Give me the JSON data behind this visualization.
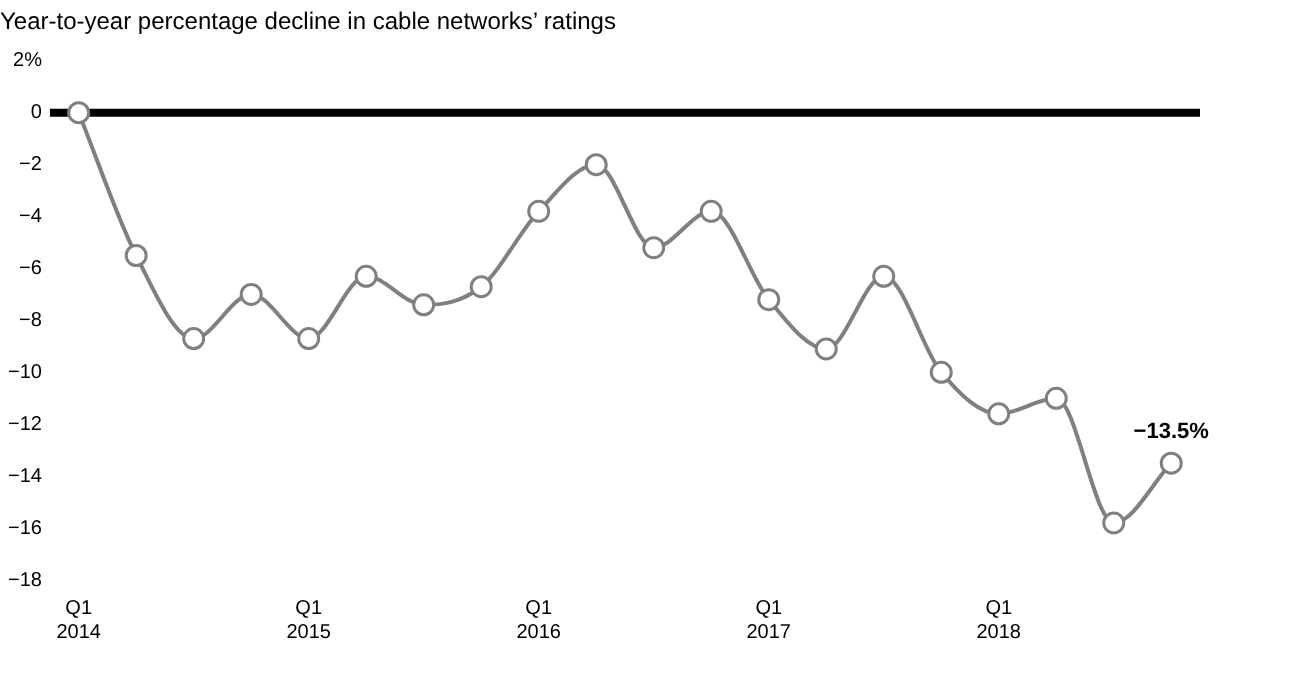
{
  "chart_data": {
    "type": "line",
    "title": "Year-to-year percentage decline in cable networks’ ratings",
    "categories": [
      "Q1\n2014",
      null,
      null,
      null,
      "Q1\n2015",
      null,
      null,
      null,
      "Q1\n2016",
      null,
      null,
      null,
      "Q1\n2017",
      null,
      null,
      null,
      "Q1\n2018",
      null,
      null,
      null
    ],
    "series": [
      {
        "color": "#808080",
        "values": [
          0,
          -5.5,
          -8.7,
          -7.0,
          -8.7,
          -6.3,
          -7.4,
          -6.7,
          -3.8,
          -2.0,
          -5.2,
          -3.8,
          -7.2,
          -9.1,
          -6.3,
          -10.0,
          -11.6,
          -11.0,
          -15.8,
          -13.5
        ],
        "value_labels": [
          null,
          null,
          null,
          null,
          null,
          null,
          null,
          null,
          null,
          null,
          null,
          null,
          null,
          null,
          null,
          null,
          null,
          null,
          null,
          "−13.5%"
        ]
      }
    ],
    "ylim": [
      -18,
      2
    ],
    "yticks": [
      {
        "value": 2,
        "label": "2%"
      },
      0,
      {
        "value": -2,
        "label": "−2"
      },
      {
        "value": -4,
        "label": "−4"
      },
      {
        "value": -6,
        "label": "−6"
      },
      {
        "value": -8,
        "label": "−8"
      },
      {
        "value": -10,
        "label": "−10"
      },
      {
        "value": -12,
        "label": "−12"
      },
      {
        "value": -14,
        "label": "−14"
      },
      {
        "value": -16,
        "label": "−16"
      },
      {
        "value": -18,
        "label": "−18"
      }
    ],
    "ref_lines": [
      {
        "axis": "y",
        "value": 0,
        "color": "#000000"
      }
    ],
    "grid": false,
    "legend": false,
    "marker": "circle",
    "line_style": "solid"
  }
}
